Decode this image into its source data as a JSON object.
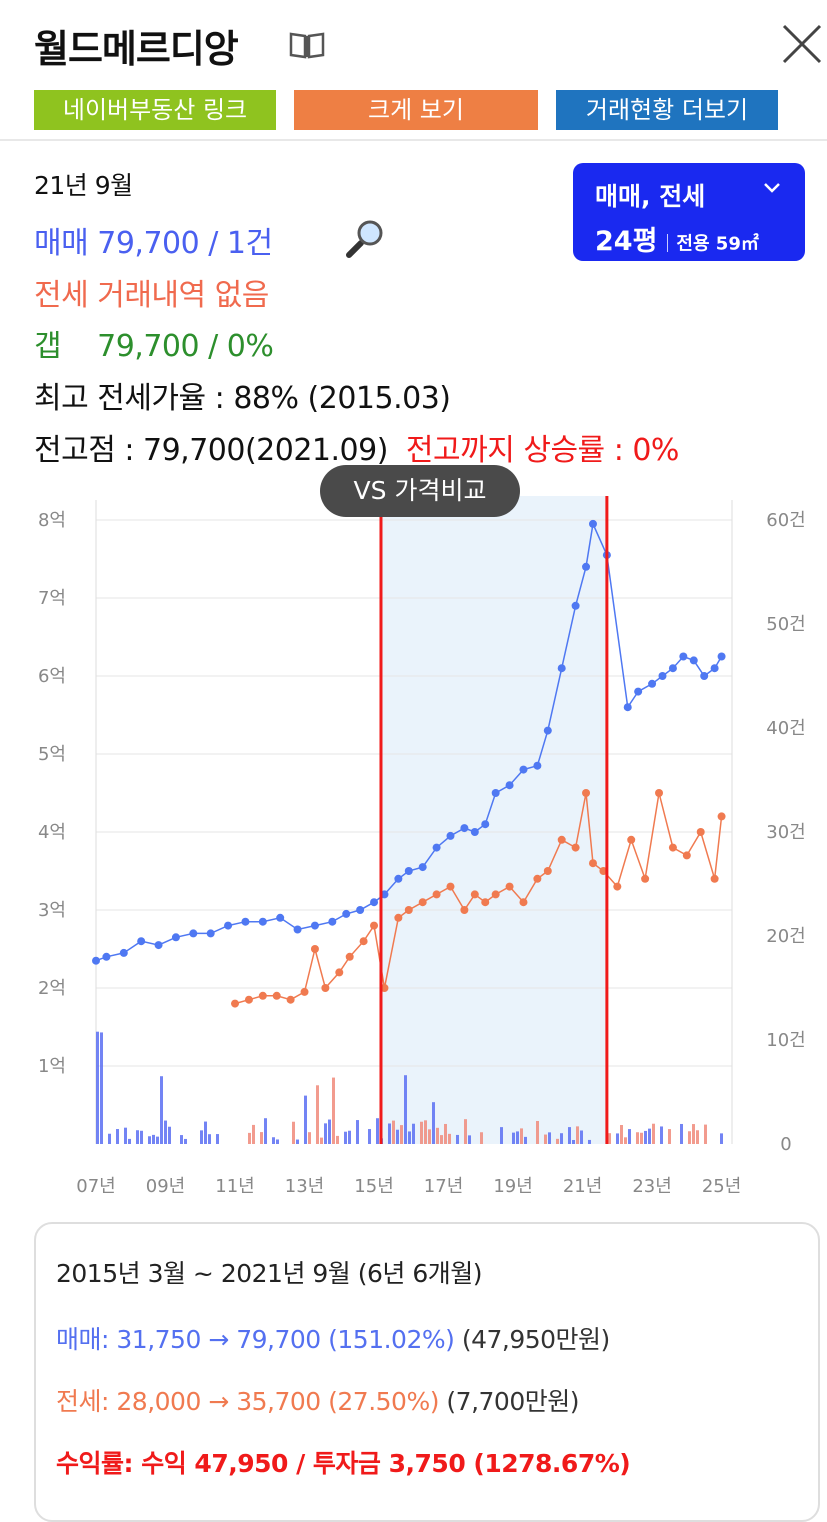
{
  "header": {
    "title": "월드메르디앙",
    "buttons": {
      "naver": "네이버부동산 링크",
      "enlarge": "크게 보기",
      "more": "거래현황 더보기"
    },
    "colors": {
      "naver": "#8fc31f",
      "enlarge": "#ee7f44",
      "more": "#1f74bf"
    }
  },
  "info": {
    "date": "21년 9월",
    "sale": "매매 79,700 / 1건",
    "jeonse": "전세 거래내역 없음",
    "gap_label": "갭",
    "gap_value": "79,700 / 0%",
    "max_rate": "최고 전세가율 : 88% (2015.03)",
    "peak": "전고점 : 79,700(2021.09)",
    "peak_rise": "전고까지 상승률 : 0%"
  },
  "type_select": {
    "value": "매매, 전세",
    "size": "24평",
    "area": "전용 59㎡",
    "color": "#1a29f0"
  },
  "vs_button": "VS 가격비교",
  "chart_data": {
    "type": "line",
    "x_ticks": [
      "07년",
      "09년",
      "11년",
      "13년",
      "15년",
      "17년",
      "19년",
      "21년",
      "23년",
      "25년"
    ],
    "y_ticks_left": [
      "1억",
      "2억",
      "3억",
      "4억",
      "5억",
      "6억",
      "7억",
      "8억"
    ],
    "y_ticks_right": [
      "0",
      "10건",
      "20건",
      "30건",
      "40건",
      "50건",
      "60건"
    ],
    "ylim_left": [
      0,
      8
    ],
    "ylim_right": [
      0,
      60
    ],
    "highlight_range": [
      2015.2,
      2021.7
    ],
    "series": [
      {
        "color": "#4f78f2",
        "x": [
          2007.0,
          2007.3,
          2007.8,
          2008.3,
          2008.8,
          2009.3,
          2009.8,
          2010.3,
          2010.8,
          2011.3,
          2011.8,
          2012.3,
          2012.8,
          2013.3,
          2013.8,
          2014.2,
          2014.6,
          2015.0,
          2015.3,
          2015.7,
          2016.0,
          2016.4,
          2016.8,
          2017.2,
          2017.6,
          2017.9,
          2018.2,
          2018.5,
          2018.9,
          2019.3,
          2019.7,
          2020.0,
          2020.4,
          2020.8,
          2021.1,
          2021.3,
          2021.7,
          2022.3,
          2022.6,
          2023.0,
          2023.3,
          2023.6,
          2023.9,
          2024.2,
          2024.5,
          2024.8,
          2025.0
        ],
        "y": [
          2.35,
          2.4,
          2.45,
          2.6,
          2.55,
          2.65,
          2.7,
          2.7,
          2.8,
          2.85,
          2.85,
          2.9,
          2.75,
          2.8,
          2.85,
          2.95,
          3.0,
          3.1,
          3.2,
          3.4,
          3.5,
          3.55,
          3.8,
          3.95,
          4.05,
          4.0,
          4.1,
          4.5,
          4.6,
          4.8,
          4.85,
          5.3,
          6.1,
          6.9,
          7.4,
          7.95,
          7.55,
          5.6,
          5.8,
          5.9,
          6.0,
          6.1,
          6.25,
          6.2,
          6.0,
          6.1,
          6.25
        ]
      },
      {
        "color": "#f07a50",
        "x": [
          2011.0,
          2011.4,
          2011.8,
          2012.2,
          2012.6,
          2013.0,
          2013.3,
          2013.6,
          2014.0,
          2014.3,
          2014.7,
          2015.0,
          2015.3,
          2015.7,
          2016.0,
          2016.4,
          2016.8,
          2017.2,
          2017.6,
          2017.9,
          2018.2,
          2018.5,
          2018.9,
          2019.3,
          2019.7,
          2020.0,
          2020.4,
          2020.8,
          2021.1,
          2021.3,
          2021.6,
          2022.0,
          2022.4,
          2022.8,
          2023.2,
          2023.6,
          2024.0,
          2024.4,
          2024.8,
          2025.0
        ],
        "y": [
          1.8,
          1.85,
          1.9,
          1.9,
          1.85,
          1.95,
          2.5,
          2.0,
          2.2,
          2.4,
          2.6,
          2.8,
          2.0,
          2.9,
          3.0,
          3.1,
          3.2,
          3.3,
          3.0,
          3.2,
          3.1,
          3.2,
          3.3,
          3.1,
          3.4,
          3.5,
          3.9,
          3.8,
          4.5,
          3.6,
          3.5,
          3.3,
          3.9,
          3.4,
          4.5,
          3.8,
          3.7,
          4.0,
          3.4,
          4.2
        ]
      }
    ]
  },
  "summary": {
    "period": "2015년 3월 ~ 2021년 9월 (6년 6개월)",
    "sale_label": "매매:",
    "sale_value": "31,750 → 79,700 (151.02%)",
    "sale_diff": "(47,950만원)",
    "jeonse_label": "전세:",
    "jeonse_value": "28,000 → 35,700 (27.50%)",
    "jeonse_diff": "(7,700만원)",
    "yield_label": "수익률:",
    "yield_value": "수익 47,950 / 투자금 3,750 (1278.67%)"
  }
}
